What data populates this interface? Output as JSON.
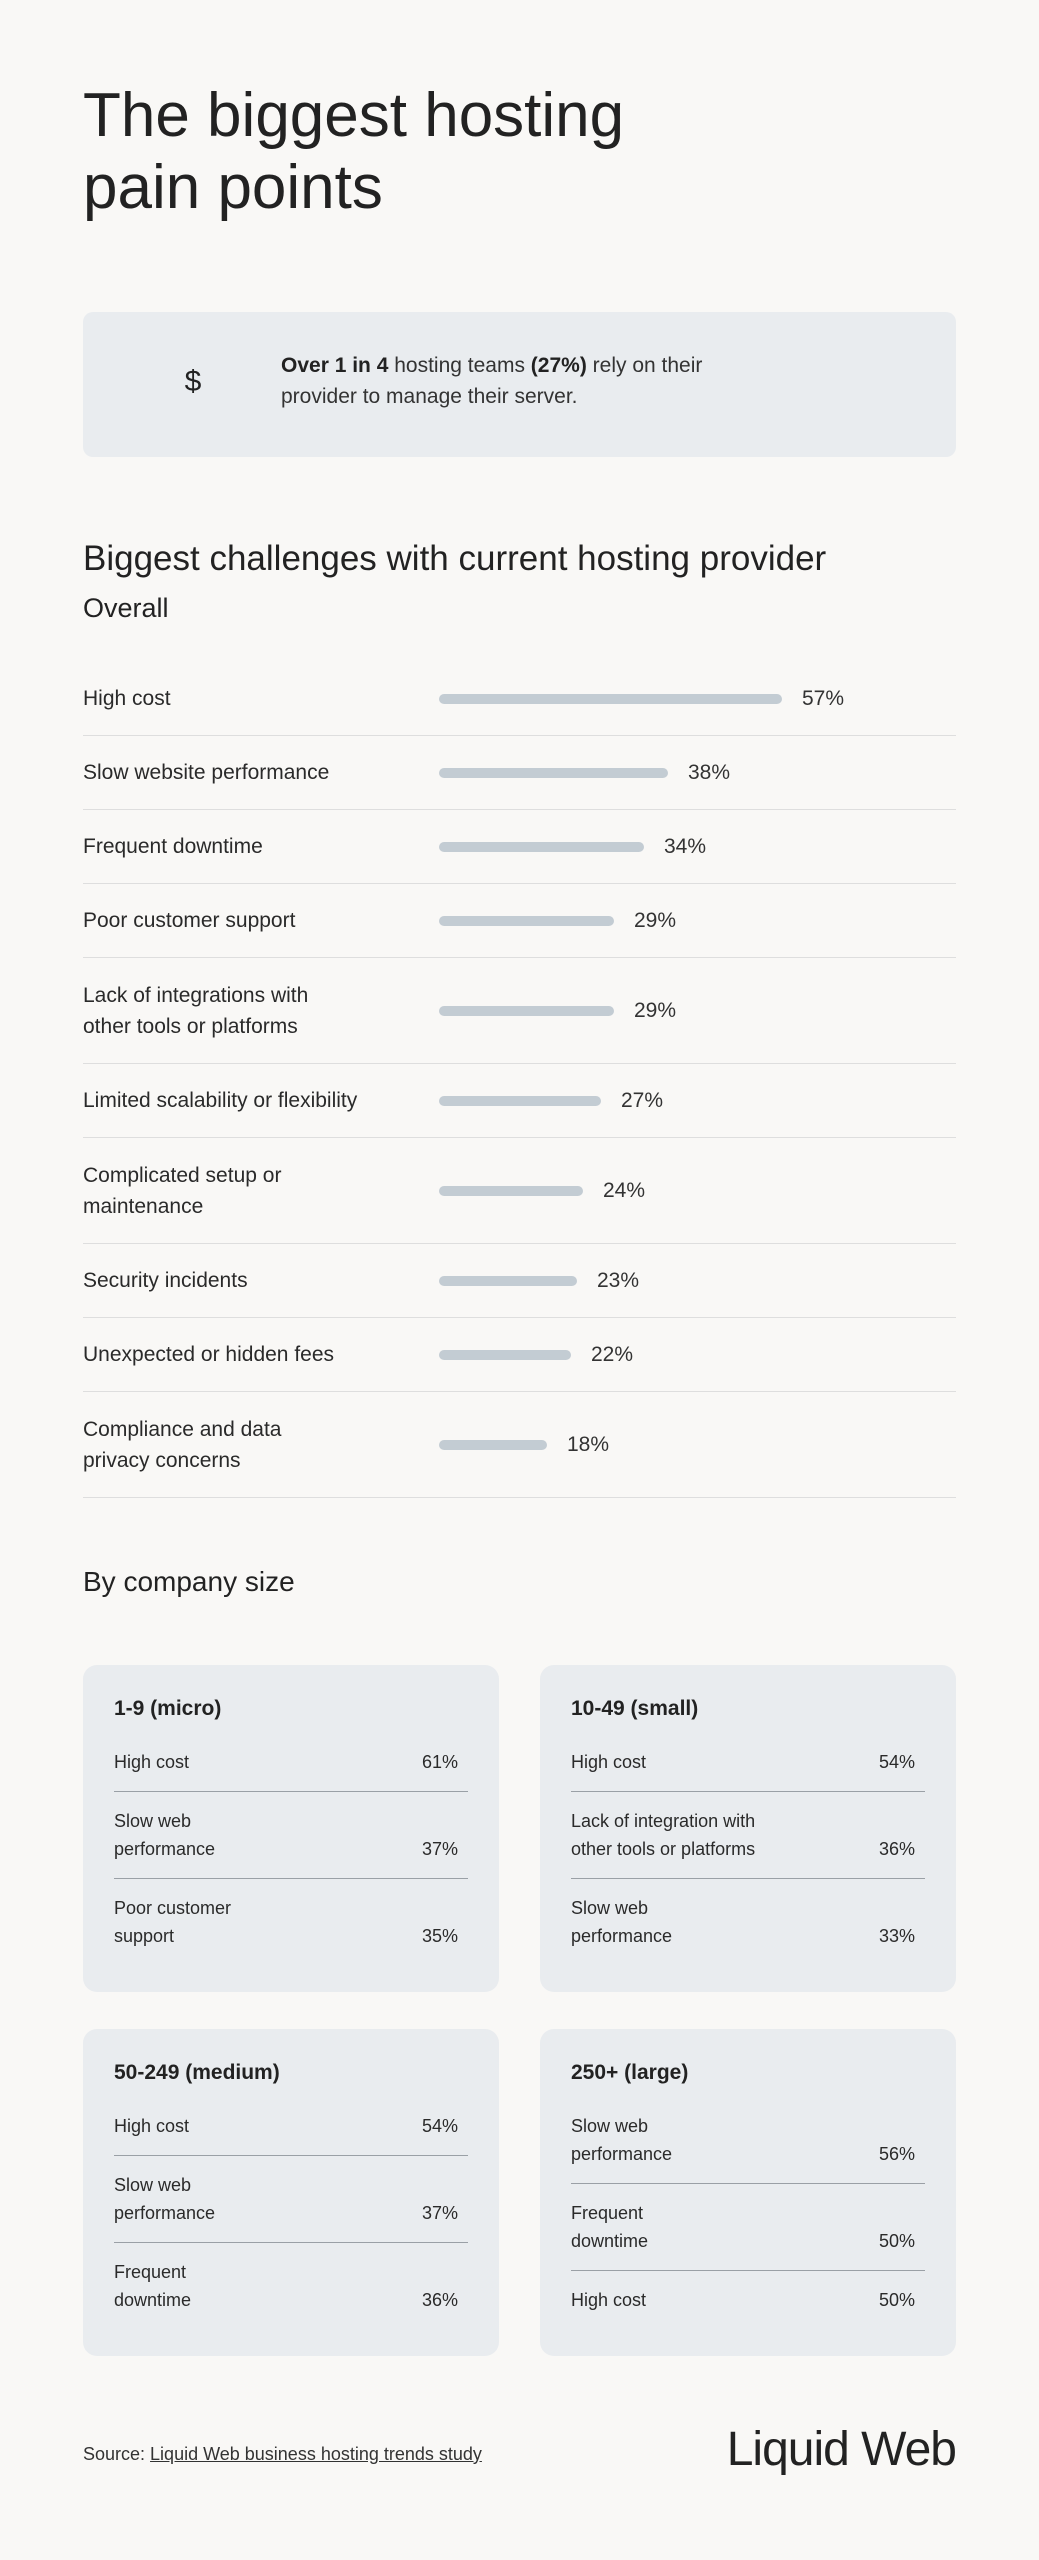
{
  "page": {
    "title_line1": "The biggest hosting",
    "title_line2": "pain points"
  },
  "callout": {
    "icon": "dollar-icon",
    "strong1": "Over 1 in 4",
    "text1": " hosting teams ",
    "strong2": "(27%)",
    "text2": " rely on their provider to manage their server."
  },
  "overall": {
    "title": "Biggest challenges with current hosting provider",
    "subtitle": "Overall"
  },
  "chart_data": {
    "type": "bar",
    "orientation": "horizontal",
    "title": "Biggest challenges with current hosting provider",
    "subtitle": "Overall",
    "categories": [
      "High cost",
      "Slow website performance",
      "Frequent downtime",
      "Poor customer support",
      "Lack of integrations with other tools or platforms",
      "Limited scalability or flexibility",
      "Complicated setup or maintenance",
      "Security incidents",
      "Unexpected or hidden fees",
      "Compliance and data privacy concerns"
    ],
    "label_lines": [
      [
        "High cost"
      ],
      [
        "Slow website performance"
      ],
      [
        "Frequent downtime"
      ],
      [
        "Poor customer support"
      ],
      [
        "Lack of integrations with",
        "other tools or platforms"
      ],
      [
        "Limited scalability or flexibility"
      ],
      [
        "Complicated setup or",
        "maintenance"
      ],
      [
        "Security incidents"
      ],
      [
        "Unexpected or hidden fees"
      ],
      [
        "Compliance and data",
        "privacy concerns"
      ]
    ],
    "values": [
      57,
      38,
      34,
      29,
      29,
      27,
      24,
      23,
      22,
      18
    ],
    "value_labels": [
      "57%",
      "38%",
      "34%",
      "29%",
      "29%",
      "27%",
      "24%",
      "23%",
      "22%",
      "18%"
    ],
    "unit": "%",
    "bar_color": "#c3ccd3"
  },
  "by_size": {
    "title": "By company size",
    "cards": [
      {
        "title": "1-9 (micro)",
        "rows": [
          {
            "lines": [
              "High cost"
            ],
            "value": "61%"
          },
          {
            "lines": [
              "Slow web",
              "performance"
            ],
            "value": "37%"
          },
          {
            "lines": [
              "Poor customer",
              "support"
            ],
            "value": "35%"
          }
        ]
      },
      {
        "title": "10-49 (small)",
        "rows": [
          {
            "lines": [
              "High cost"
            ],
            "value": "54%"
          },
          {
            "lines": [
              "Lack of integration with",
              "other tools or platforms"
            ],
            "value": "36%"
          },
          {
            "lines": [
              "Slow web",
              "performance"
            ],
            "value": "33%"
          }
        ]
      },
      {
        "title": "50-249 (medium)",
        "rows": [
          {
            "lines": [
              "High cost"
            ],
            "value": "54%"
          },
          {
            "lines": [
              "Slow web",
              "performance"
            ],
            "value": "37%"
          },
          {
            "lines": [
              "Frequent",
              "downtime"
            ],
            "value": "36%"
          }
        ]
      },
      {
        "title": "250+ (large)",
        "rows": [
          {
            "lines": [
              "Slow web",
              "performance"
            ],
            "value": "56%"
          },
          {
            "lines": [
              "Frequent",
              "downtime"
            ],
            "value": "50%"
          },
          {
            "lines": [
              "High cost"
            ],
            "value": "50%"
          }
        ]
      }
    ]
  },
  "footer": {
    "source_prefix": "Source: ",
    "source_link": "Liquid Web business hosting trends study",
    "brand": "Liquid Web"
  }
}
